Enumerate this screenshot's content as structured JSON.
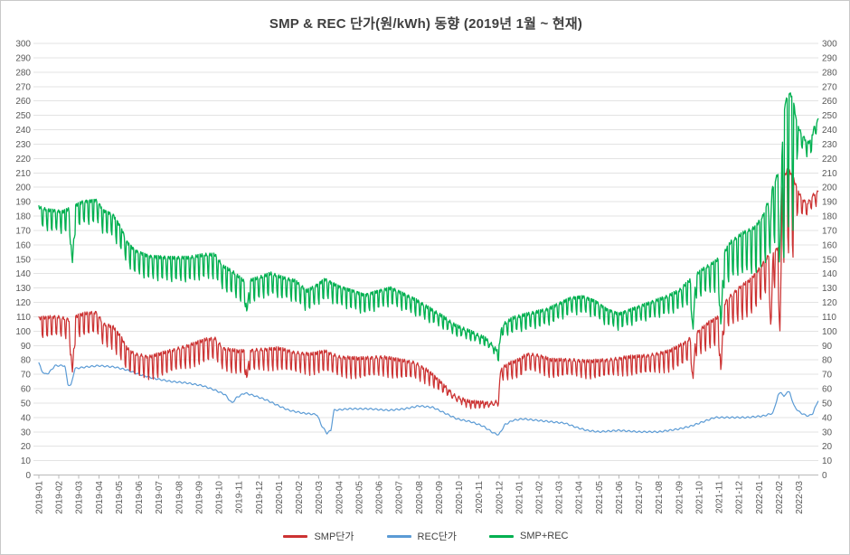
{
  "chart_data": {
    "type": "line",
    "title": "SMP & REC 단가(원/kWh) 동향 (2019년 1월 ~ 현재)",
    "y_axis": {
      "min": 0,
      "max": 300,
      "step": 10,
      "sides": [
        "left",
        "right"
      ]
    },
    "x_labels": [
      "2019-01",
      "2019-02",
      "2019-03",
      "2019-04",
      "2019-05",
      "2019-06",
      "2019-07",
      "2019-08",
      "2019-09",
      "2019-10",
      "2019-11",
      "2019-12",
      "2020-01",
      "2020-02",
      "2020-03",
      "2020-04",
      "2020-05",
      "2020-06",
      "2020-07",
      "2020-08",
      "2020-09",
      "2020-10",
      "2020-11",
      "2020-12",
      "2021-01",
      "2021-02",
      "2021-03",
      "2021-04",
      "2021-05",
      "2021-06",
      "2021-07",
      "2021-08",
      "2021-09",
      "2021-10",
      "2021-11",
      "2021-12",
      "2022-01",
      "2022-02",
      "2022-03"
    ],
    "x_span_months": 38.97,
    "grid": true,
    "legend_position": "bottom",
    "series": [
      {
        "name": "REC단가",
        "color": "#5b9bd5",
        "stroke_width": 1.2,
        "wiggle_amp": 0.5,
        "wiggle_freq": 0.8,
        "wiggle_phase": 0,
        "anchors": [
          [
            0,
            78
          ],
          [
            0.12,
            73
          ],
          [
            0.3,
            70
          ],
          [
            0.5,
            71
          ],
          [
            0.8,
            76
          ],
          [
            1.3,
            76
          ],
          [
            1.45,
            63
          ],
          [
            1.6,
            62
          ],
          [
            1.8,
            74
          ],
          [
            2.3,
            75
          ],
          [
            3.0,
            76
          ],
          [
            3.8,
            75
          ],
          [
            4.4,
            73
          ],
          [
            5.0,
            70
          ],
          [
            5.8,
            67
          ],
          [
            6.6,
            65
          ],
          [
            7.4,
            64
          ],
          [
            8.2,
            62
          ],
          [
            8.8,
            59
          ],
          [
            9.3,
            56
          ],
          [
            9.65,
            50
          ],
          [
            9.9,
            54
          ],
          [
            10.3,
            57
          ],
          [
            10.8,
            55
          ],
          [
            11.4,
            52
          ],
          [
            12.0,
            48
          ],
          [
            12.5,
            45
          ],
          [
            13.2,
            43
          ],
          [
            13.9,
            42
          ],
          [
            14.15,
            34
          ],
          [
            14.4,
            29
          ],
          [
            14.6,
            31
          ],
          [
            14.75,
            45
          ],
          [
            15.5,
            46
          ],
          [
            16.5,
            46
          ],
          [
            17.5,
            45
          ],
          [
            18.3,
            46
          ],
          [
            19.0,
            48
          ],
          [
            19.7,
            47
          ],
          [
            20.3,
            43
          ],
          [
            20.9,
            39
          ],
          [
            21.6,
            37
          ],
          [
            22.2,
            34
          ],
          [
            22.75,
            29
          ],
          [
            23.0,
            28
          ],
          [
            23.3,
            35
          ],
          [
            23.7,
            38
          ],
          [
            24.2,
            39
          ],
          [
            24.9,
            38
          ],
          [
            25.6,
            37
          ],
          [
            26.3,
            36
          ],
          [
            26.9,
            33
          ],
          [
            27.4,
            31
          ],
          [
            28.0,
            30
          ],
          [
            29.0,
            31
          ],
          [
            30.0,
            30
          ],
          [
            31.0,
            30
          ],
          [
            32.0,
            32
          ],
          [
            32.6,
            34
          ],
          [
            33.2,
            37
          ],
          [
            33.8,
            40
          ],
          [
            34.6,
            40
          ],
          [
            35.4,
            40
          ],
          [
            36.2,
            41
          ],
          [
            36.7,
            43
          ],
          [
            36.95,
            55
          ],
          [
            37.1,
            58
          ],
          [
            37.25,
            54
          ],
          [
            37.4,
            58
          ],
          [
            37.55,
            57
          ],
          [
            37.75,
            48
          ],
          [
            38.0,
            44
          ],
          [
            38.25,
            42
          ],
          [
            38.5,
            41
          ],
          [
            38.7,
            43
          ],
          [
            38.9,
            50
          ],
          [
            38.97,
            52
          ]
        ],
        "weekly_dip": []
      },
      {
        "name": "SMP단가",
        "color": "#cc3333",
        "stroke_width": 1.25,
        "wiggle_amp": 1.2,
        "wiggle_freq": 1.9,
        "wiggle_phase": 0.7,
        "anchors": [
          [
            0,
            109
          ],
          [
            0.9,
            110
          ],
          [
            1.5,
            108
          ],
          [
            2.2,
            112
          ],
          [
            2.9,
            113
          ],
          [
            3.2,
            105
          ],
          [
            3.7,
            103
          ],
          [
            4.1,
            96
          ],
          [
            4.4,
            88
          ],
          [
            4.8,
            84
          ],
          [
            5.5,
            82
          ],
          [
            6.5,
            86
          ],
          [
            7.5,
            90
          ],
          [
            8.3,
            94
          ],
          [
            8.8,
            95
          ],
          [
            9.2,
            88
          ],
          [
            10.0,
            86
          ],
          [
            11.0,
            87
          ],
          [
            12.0,
            88
          ],
          [
            12.8,
            85
          ],
          [
            13.6,
            84
          ],
          [
            14.3,
            86
          ],
          [
            15.0,
            82
          ],
          [
            16.0,
            81
          ],
          [
            17.2,
            82
          ],
          [
            18.0,
            80
          ],
          [
            18.8,
            78
          ],
          [
            19.5,
            72
          ],
          [
            20.2,
            63
          ],
          [
            20.8,
            55
          ],
          [
            21.5,
            51
          ],
          [
            22.5,
            50
          ],
          [
            22.95,
            51
          ],
          [
            23.1,
            74
          ],
          [
            23.6,
            78
          ],
          [
            24.0,
            80
          ],
          [
            24.4,
            84
          ],
          [
            25.0,
            83
          ],
          [
            25.6,
            80
          ],
          [
            26.5,
            80
          ],
          [
            27.5,
            79
          ],
          [
            28.5,
            80
          ],
          [
            29.5,
            82
          ],
          [
            30.5,
            83
          ],
          [
            31.5,
            86
          ],
          [
            32.3,
            92
          ],
          [
            32.9,
            99
          ],
          [
            33.5,
            106
          ],
          [
            34.0,
            110
          ],
          [
            34.4,
            122
          ],
          [
            35.0,
            130
          ],
          [
            35.6,
            136
          ],
          [
            36.0,
            143
          ],
          [
            36.5,
            153
          ],
          [
            36.9,
            157
          ],
          [
            37.05,
            160
          ],
          [
            37.2,
            205
          ],
          [
            37.45,
            213
          ],
          [
            37.7,
            207
          ],
          [
            37.95,
            197
          ],
          [
            38.2,
            191
          ],
          [
            38.45,
            189
          ],
          [
            38.65,
            194
          ],
          [
            38.97,
            197
          ]
        ],
        "weekly_dip": [
          [
            0,
            13
          ],
          [
            2,
            14
          ],
          [
            4,
            15
          ],
          [
            8.5,
            15
          ],
          [
            12,
            14
          ],
          [
            17,
            13
          ],
          [
            19,
            11
          ],
          [
            20,
            6
          ],
          [
            20.8,
            4
          ],
          [
            22.8,
            3
          ],
          [
            23.15,
            8
          ],
          [
            24,
            12
          ],
          [
            27,
            11
          ],
          [
            30,
            12
          ],
          [
            32,
            14
          ],
          [
            33.5,
            17
          ],
          [
            34.3,
            20
          ],
          [
            35.3,
            23
          ],
          [
            36.3,
            24
          ],
          [
            36.85,
            26
          ],
          [
            37.1,
            40
          ],
          [
            37.25,
            58
          ],
          [
            37.7,
            56
          ],
          [
            37.95,
            13
          ],
          [
            38.5,
            9
          ],
          [
            38.97,
            9
          ]
        ]
      },
      {
        "name": "SMP+REC",
        "color": "#00b050",
        "stroke_width": 1.35,
        "wiggle_amp": 1.2,
        "wiggle_freq": 2.1,
        "wiggle_phase": 2.0,
        "anchors": [
          [
            0,
            186
          ],
          [
            0.5,
            184
          ],
          [
            1.2,
            183
          ],
          [
            1.5,
            185
          ],
          [
            2.2,
            190
          ],
          [
            2.9,
            191
          ],
          [
            3.2,
            184
          ],
          [
            3.7,
            181
          ],
          [
            4.1,
            172
          ],
          [
            4.4,
            162
          ],
          [
            4.8,
            156
          ],
          [
            5.5,
            152
          ],
          [
            6.5,
            151
          ],
          [
            7.5,
            151
          ],
          [
            8.3,
            153
          ],
          [
            8.8,
            153
          ],
          [
            9.2,
            145
          ],
          [
            9.7,
            141
          ],
          [
            10.3,
            134
          ],
          [
            11.0,
            137
          ],
          [
            11.6,
            140
          ],
          [
            12.2,
            137
          ],
          [
            12.8,
            135
          ],
          [
            13.4,
            128
          ],
          [
            13.9,
            132
          ],
          [
            14.3,
            136
          ],
          [
            15.0,
            131
          ],
          [
            15.7,
            128
          ],
          [
            16.3,
            125
          ],
          [
            17.0,
            128
          ],
          [
            17.6,
            130
          ],
          [
            18.2,
            126
          ],
          [
            18.8,
            122
          ],
          [
            19.5,
            116
          ],
          [
            20.2,
            110
          ],
          [
            20.8,
            104
          ],
          [
            21.5,
            100
          ],
          [
            22.3,
            95
          ],
          [
            22.7,
            90
          ],
          [
            22.97,
            85
          ],
          [
            23.15,
            104
          ],
          [
            23.7,
            109
          ],
          [
            24.2,
            111
          ],
          [
            24.8,
            113
          ],
          [
            25.4,
            115
          ],
          [
            26.0,
            119
          ],
          [
            26.6,
            123
          ],
          [
            27.2,
            124
          ],
          [
            27.8,
            121
          ],
          [
            28.4,
            115
          ],
          [
            29.0,
            112
          ],
          [
            29.6,
            115
          ],
          [
            30.2,
            118
          ],
          [
            30.8,
            121
          ],
          [
            31.4,
            124
          ],
          [
            32.0,
            128
          ],
          [
            32.6,
            136
          ],
          [
            33.2,
            143
          ],
          [
            33.8,
            148
          ],
          [
            34.2,
            153
          ],
          [
            34.6,
            162
          ],
          [
            35.2,
            168
          ],
          [
            35.8,
            172
          ],
          [
            36.2,
            180
          ],
          [
            36.6,
            196
          ],
          [
            36.9,
            208
          ],
          [
            37.1,
            212
          ],
          [
            37.3,
            258
          ],
          [
            37.5,
            266
          ],
          [
            37.7,
            262
          ],
          [
            37.9,
            243
          ],
          [
            38.15,
            237
          ],
          [
            38.4,
            231
          ],
          [
            38.6,
            232
          ],
          [
            38.8,
            244
          ],
          [
            38.97,
            247
          ]
        ],
        "weekly_dip": [
          [
            0,
            13
          ],
          [
            2,
            15
          ],
          [
            4,
            15
          ],
          [
            8.5,
            16
          ],
          [
            12,
            14
          ],
          [
            17,
            12
          ],
          [
            19,
            10
          ],
          [
            20,
            8
          ],
          [
            21,
            6
          ],
          [
            22.8,
            4
          ],
          [
            23.15,
            8
          ],
          [
            24,
            10
          ],
          [
            27,
            11
          ],
          [
            30,
            10
          ],
          [
            32,
            13
          ],
          [
            33.5,
            18
          ],
          [
            34.3,
            24
          ],
          [
            35.3,
            27
          ],
          [
            36.3,
            36
          ],
          [
            36.85,
            44
          ],
          [
            37.1,
            70
          ],
          [
            37.25,
            95
          ],
          [
            37.7,
            92
          ],
          [
            37.95,
            12
          ],
          [
            38.5,
            8
          ],
          [
            38.97,
            9
          ]
        ]
      }
    ],
    "dip_events": [
      {
        "series": "SMP단가",
        "month": 1.67,
        "value": 70,
        "width_days": 5
      },
      {
        "series": "SMP+REC",
        "month": 1.67,
        "value": 146,
        "width_days": 5
      },
      {
        "series": "SMP단가",
        "month": 10.4,
        "value": 66,
        "width_days": 4
      },
      {
        "series": "SMP+REC",
        "month": 10.4,
        "value": 112,
        "width_days": 4
      },
      {
        "series": "SMP단가",
        "month": 32.7,
        "value": 65,
        "width_days": 4
      },
      {
        "series": "SMP+REC",
        "month": 32.7,
        "value": 99,
        "width_days": 4
      },
      {
        "series": "SMP단가",
        "month": 34.1,
        "value": 70,
        "width_days": 4
      },
      {
        "series": "SMP+REC",
        "month": 34.1,
        "value": 101,
        "width_days": 4
      },
      {
        "series": "SMP단가",
        "month": 36.6,
        "value": 98,
        "width_days": 3
      },
      {
        "series": "SMP+REC",
        "month": 36.55,
        "value": 163,
        "width_days": 3
      },
      {
        "series": "SMP단가",
        "month": 37.05,
        "value": 99,
        "width_days": 3
      },
      {
        "series": "SMP+REC",
        "month": 37.05,
        "value": 158,
        "width_days": 3
      }
    ]
  }
}
